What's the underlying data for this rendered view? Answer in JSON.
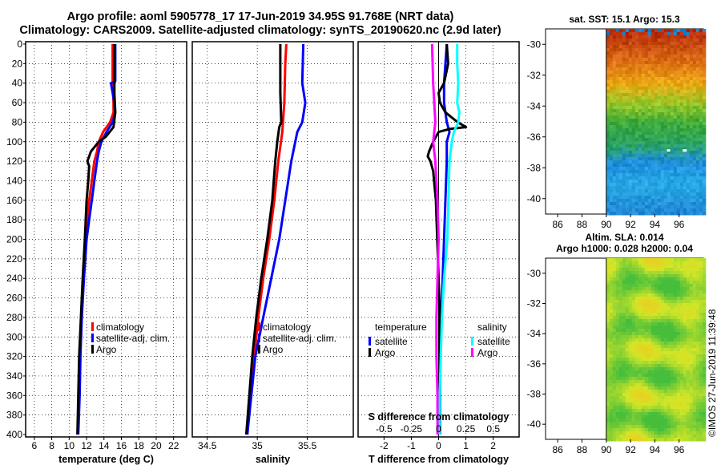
{
  "header": {
    "title_line1": "Argo profile: aoml 5905778_17 17-Jun-2019 34.95S 91.768E (NRT data)",
    "title_line2": "Climatology: CARS2009. Satellite-adjusted climatology: synTS_20190620.nc (2.9d later)"
  },
  "colors": {
    "climatology": "#ff0000",
    "satellite": "#0000ff",
    "argo": "#000000",
    "sal_satellite": "#00ffff",
    "sal_argo": "#ff00ff"
  },
  "depth_axis": {
    "range": [
      0,
      400
    ],
    "ticks": [
      "0",
      "20",
      "40",
      "60",
      "80",
      "100",
      "120",
      "140",
      "160",
      "180",
      "200",
      "220",
      "240",
      "260",
      "280",
      "300",
      "320",
      "340",
      "360",
      "380",
      "400"
    ]
  },
  "chart_data": [
    {
      "id": "temperature",
      "type": "line",
      "xlabel": "temperature (deg C)",
      "ylabel": "depth",
      "xlim": [
        5,
        23.5
      ],
      "ylim": [
        400,
        0
      ],
      "xticks": [
        "6",
        "8",
        "10",
        "12",
        "14",
        "16",
        "18",
        "20",
        "22"
      ],
      "legend": [
        "climatology",
        "satellite-adj. clim.",
        "Argo"
      ],
      "legend_position": "lower-right",
      "series": [
        {
          "name": "climatology",
          "depth": [
            0,
            40,
            60,
            70,
            80,
            90,
            100,
            110,
            120,
            140,
            160,
            180,
            200,
            240,
            280,
            320,
            360,
            400
          ],
          "values": [
            15.0,
            15.0,
            15.1,
            15.1,
            14.7,
            13.9,
            13.4,
            13.2,
            12.9,
            12.6,
            12.3,
            12.1,
            11.9,
            11.6,
            11.4,
            11.25,
            11.15,
            11.0
          ]
        },
        {
          "name": "satellite-adj. clim.",
          "depth": [
            0,
            38,
            40,
            60,
            70,
            80,
            90,
            100,
            110,
            120,
            140,
            160,
            180,
            200,
            240,
            280,
            320,
            360,
            400
          ],
          "values": [
            15.3,
            15.3,
            14.8,
            15.2,
            15.3,
            15.0,
            14.3,
            13.7,
            13.4,
            13.2,
            12.9,
            12.6,
            12.3,
            12.0,
            11.7,
            11.45,
            11.3,
            11.2,
            11.05
          ]
        },
        {
          "name": "Argo",
          "depth": [
            0,
            50,
            70,
            85,
            95,
            100,
            110,
            120,
            125,
            140,
            160,
            180,
            200,
            240,
            280,
            320,
            360,
            400
          ],
          "values": [
            15.2,
            15.2,
            15.3,
            15.1,
            14.2,
            13.4,
            12.5,
            12.1,
            12.3,
            12.2,
            12.0,
            11.9,
            11.8,
            11.55,
            11.35,
            11.15,
            11.05,
            10.95
          ]
        }
      ]
    },
    {
      "id": "salinity",
      "type": "line",
      "xlabel": "salinity",
      "ylabel": "depth",
      "xlim": [
        34.35,
        35.96
      ],
      "ylim": [
        400,
        0
      ],
      "xticks": [
        "34.5",
        "35",
        "35.5"
      ],
      "legend": [
        "climatology",
        "satellite-adj. clim.",
        "Argo"
      ],
      "legend_position": "lower-right",
      "series": [
        {
          "name": "climatology",
          "depth": [
            0,
            20,
            60,
            90,
            120,
            160,
            200,
            240,
            280,
            320,
            360,
            400
          ],
          "values": [
            35.29,
            35.28,
            35.27,
            35.25,
            35.21,
            35.17,
            35.12,
            35.06,
            35.01,
            34.97,
            34.93,
            34.9
          ]
        },
        {
          "name": "satellite-adj. clim.",
          "depth": [
            0,
            40,
            60,
            80,
            90,
            120,
            160,
            200,
            240,
            280,
            320,
            360,
            400
          ],
          "values": [
            35.46,
            35.45,
            35.48,
            35.45,
            35.4,
            35.34,
            35.28,
            35.22,
            35.14,
            35.06,
            34.98,
            34.94,
            34.9
          ]
        },
        {
          "name": "Argo",
          "depth": [
            0,
            50,
            80,
            85,
            100,
            120,
            160,
            200,
            240,
            280,
            320,
            360,
            400
          ],
          "values": [
            35.23,
            35.23,
            35.24,
            35.22,
            35.2,
            35.18,
            35.15,
            35.1,
            35.04,
            34.99,
            34.95,
            34.92,
            34.89
          ]
        }
      ]
    },
    {
      "id": "difference",
      "type": "line",
      "xlabel": "T difference from climatology",
      "x2label": "S difference from climatology",
      "ylabel": "depth",
      "xlim": [
        -2.95,
        2.95
      ],
      "x2lim": [
        -0.737,
        0.737
      ],
      "ylim": [
        400,
        0
      ],
      "xticks": [
        "-2",
        "-1",
        "0",
        "1",
        "2"
      ],
      "x2ticks": [
        "-0.5",
        "-0.25",
        "0",
        "0.25",
        "0.5"
      ],
      "legend_temperature": {
        "heading": "temperature",
        "items": [
          "satellite",
          "Argo"
        ]
      },
      "legend_salinity": {
        "heading": "salinity",
        "items": [
          "satellite",
          "Argo"
        ]
      },
      "series": [
        {
          "name": "T satellite",
          "variable": "temperature",
          "depth": [
            0,
            40,
            60,
            80,
            90,
            100,
            120,
            160,
            200,
            240,
            280,
            320,
            360,
            400
          ],
          "values": [
            0.3,
            0.2,
            0.2,
            0.3,
            0.4,
            0.3,
            0.3,
            0.25,
            0.2,
            0.15,
            0.1,
            0.05,
            0.05,
            0.05
          ]
        },
        {
          "name": "T Argo",
          "variable": "temperature",
          "depth": [
            0,
            20,
            40,
            50,
            60,
            70,
            80,
            85,
            87,
            90,
            100,
            110,
            115,
            120,
            130,
            160,
            200,
            240,
            280,
            320,
            360,
            400
          ],
          "values": [
            0.3,
            0.35,
            0.2,
            0.0,
            0.05,
            0.25,
            0.7,
            1.0,
            0.4,
            0.0,
            -0.2,
            -0.35,
            -0.4,
            -0.3,
            -0.2,
            -0.1,
            -0.05,
            0.0,
            0.05,
            0.05,
            0.05,
            0.05
          ]
        },
        {
          "name": "S satellite",
          "variable": "salinity",
          "depth": [
            0,
            20,
            40,
            60,
            70,
            80,
            90,
            100,
            120,
            160,
            200,
            240,
            280,
            320,
            360,
            400
          ],
          "values": [
            0.17,
            0.17,
            0.18,
            0.17,
            0.19,
            0.18,
            0.14,
            0.12,
            0.1,
            0.09,
            0.08,
            0.05,
            0.03,
            0.02,
            0.01,
            0.01
          ]
        },
        {
          "name": "S Argo",
          "variable": "salinity",
          "depth": [
            0,
            40,
            80,
            100,
            120,
            160,
            200,
            240,
            280,
            320,
            360,
            400
          ],
          "values": [
            -0.06,
            -0.05,
            -0.03,
            -0.05,
            -0.03,
            -0.01,
            0.0,
            -0.01,
            -0.02,
            -0.02,
            -0.01,
            -0.01
          ]
        }
      ]
    }
  ],
  "maps": [
    {
      "id": "sst-map",
      "title_lines": [
        "sat. SST: 15.1 Argo: 15.3"
      ],
      "lon_ticks": [
        "86",
        "88",
        "90",
        "92",
        "94",
        "96"
      ],
      "lat_ticks": [
        "-30",
        "-32",
        "-34",
        "-36",
        "-38",
        "-40"
      ],
      "field": "sst"
    },
    {
      "id": "sla-map",
      "title_lines": [
        "Altim. SLA: 0.014",
        "Argo h1000: 0.028 h2000: 0.04"
      ],
      "lon_ticks": [
        "86",
        "88",
        "90",
        "92",
        "94",
        "96"
      ],
      "lat_ticks": [
        "-30",
        "-32",
        "-34",
        "-36",
        "-38",
        "-40"
      ],
      "field": "sla"
    }
  ],
  "watermark": "©IMOS 27-Jun-2019 11:39:48"
}
